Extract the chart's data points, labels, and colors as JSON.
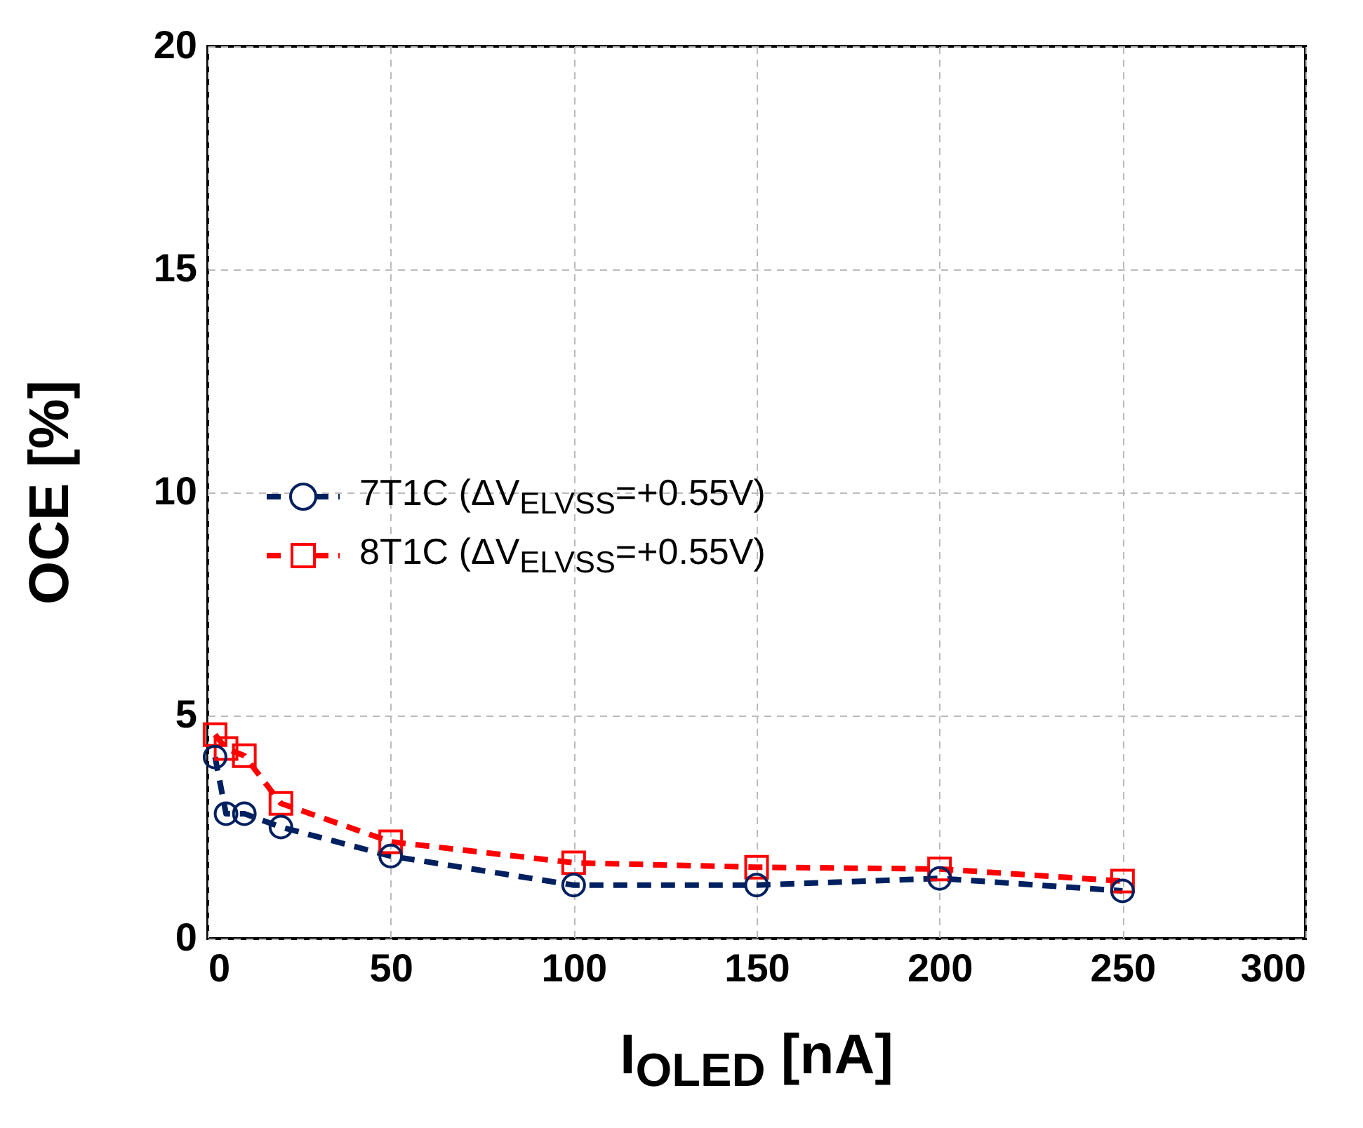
{
  "chart_data": {
    "type": "line",
    "xlabel": "I$_{OLED}$ [nA]",
    "ylabel": "OCE [%]",
    "xlim": [
      0,
      300
    ],
    "xticks": [
      0,
      50,
      100,
      150,
      200,
      250,
      300
    ],
    "ylim": [
      0,
      20
    ],
    "yticks": [
      0,
      5,
      10,
      15,
      20
    ],
    "grid": true,
    "legend": "left",
    "line_style": "dashed",
    "series": [
      {
        "name": "7T1C (ΔV$_{ELVSS}$=+0.55V)",
        "color": "#002060",
        "marker": "circle",
        "x": [
          2,
          5,
          10,
          20,
          50,
          100,
          150,
          200,
          250
        ],
        "values": [
          4.07,
          2.8,
          2.8,
          2.5,
          1.85,
          1.2,
          1.2,
          1.35,
          1.07
        ]
      },
      {
        "name": "8T1C (ΔV$_{ELVSS}$=+0.55V)",
        "color": "#ff0000",
        "marker": "square",
        "x": [
          2,
          5,
          10,
          20,
          50,
          100,
          150,
          200,
          250
        ],
        "values": [
          4.57,
          4.26,
          4.1,
          3.03,
          2.17,
          1.7,
          1.6,
          1.56,
          1.29
        ]
      }
    ]
  }
}
